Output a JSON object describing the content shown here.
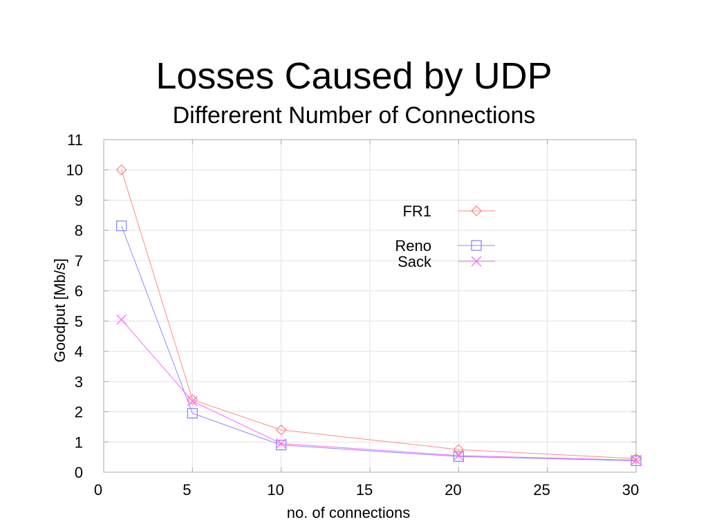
{
  "slide": {
    "title": "Losses Caused by UDP",
    "subtitle": "Differerent Number of Connections"
  },
  "chart_data": {
    "type": "line",
    "title": "Losses Caused by UDP",
    "subtitle": "Differerent Number of Connections",
    "xlabel": "no. of connections",
    "ylabel": "Goodput [Mb/s]",
    "xlim": [
      0,
      30
    ],
    "ylim": [
      0,
      11
    ],
    "xticks": [
      0,
      5,
      10,
      15,
      20,
      25,
      30
    ],
    "yticks": [
      0,
      1,
      2,
      3,
      4,
      5,
      6,
      7,
      8,
      9,
      10,
      11
    ],
    "grid": true,
    "legend_position": "top-right",
    "series": [
      {
        "name": "FR1",
        "marker": "diamond",
        "color": "#ff8a8a",
        "x": [
          1,
          5,
          10,
          20,
          30
        ],
        "y": [
          10.0,
          2.4,
          1.4,
          0.75,
          0.45
        ]
      },
      {
        "name": "Reno",
        "marker": "square",
        "color": "#8a8aff",
        "x": [
          1,
          5,
          10,
          20,
          30
        ],
        "y": [
          8.15,
          1.95,
          0.9,
          0.52,
          0.38
        ]
      },
      {
        "name": "Sack",
        "marker": "cross",
        "color": "#ff66ff",
        "x": [
          1,
          5,
          10,
          20,
          30
        ],
        "y": [
          5.05,
          2.35,
          0.95,
          0.55,
          0.4
        ]
      }
    ]
  }
}
